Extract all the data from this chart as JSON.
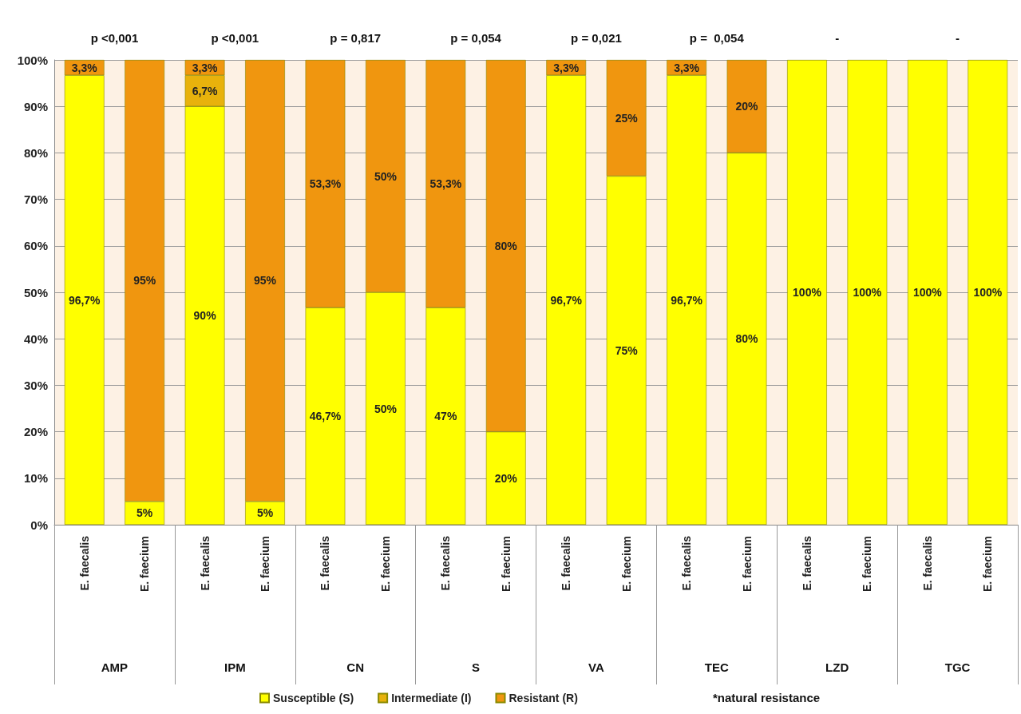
{
  "chart_data": {
    "type": "bar",
    "stacked": true,
    "categories": [
      "E. faecalis",
      "E. faecium",
      "E. faecalis",
      "E. faecium",
      "E. faecalis",
      "E. faecium",
      "E. faecalis",
      "E. faecium",
      "E. faecalis",
      "E. faecium",
      "E. faecalis",
      "E. faecium",
      "E. faecalis",
      "E. faecium",
      "E. faecalis",
      "E. faecium"
    ],
    "series": [
      {
        "name": "Susceptible (S)",
        "color": "#ffff00",
        "values": [
          96.7,
          5,
          90,
          5,
          46.7,
          50,
          46.7,
          20,
          96.7,
          75,
          96.7,
          80,
          100,
          100,
          100,
          100
        ],
        "value_labels": [
          "96,7%",
          "5%",
          "90%",
          "5%",
          "46,7%",
          "50%",
          "47%",
          "20%",
          "96,7%",
          "75%",
          "96,7%",
          "80%",
          "100%",
          "100%",
          "100%",
          "100%"
        ]
      },
      {
        "name": "Intermediate (I)",
        "color": "#e8b20c",
        "values": [
          0,
          0,
          6.7,
          0,
          0,
          0,
          0,
          0,
          0,
          0,
          0,
          0,
          0,
          0,
          0,
          0
        ],
        "value_labels": [
          null,
          null,
          "6,7%",
          null,
          null,
          null,
          null,
          null,
          null,
          null,
          null,
          null,
          null,
          null,
          null,
          null
        ]
      },
      {
        "name": "Resistant (R)",
        "color": "#f0960f",
        "values": [
          3.3,
          95,
          3.3,
          95,
          53.3,
          50,
          53.3,
          80,
          3.3,
          25,
          3.3,
          20,
          0,
          0,
          0,
          0
        ],
        "value_labels": [
          "3,3%",
          "95%",
          "3,3%",
          "95%",
          "53,3%",
          "50%",
          "53,3%",
          "80%",
          "3,3%",
          "25%",
          "3,3%",
          "20%",
          null,
          null,
          null,
          null
        ]
      }
    ],
    "ylim": [
      0,
      100
    ],
    "yticks": [
      {
        "value": 0,
        "label": "0%"
      },
      {
        "value": 10,
        "label": "10%"
      },
      {
        "value": 20,
        "label": "20%"
      },
      {
        "value": 30,
        "label": "30%"
      },
      {
        "value": 40,
        "label": "40%"
      },
      {
        "value": 50,
        "label": "50%"
      },
      {
        "value": 60,
        "label": "60%"
      },
      {
        "value": 70,
        "label": "70%"
      },
      {
        "value": 80,
        "label": "80%"
      },
      {
        "value": 90,
        "label": "90%"
      },
      {
        "value": 100,
        "label": "100%"
      }
    ],
    "grid": "y",
    "legend": "bottom",
    "annotations": [
      "p <0,001",
      "p <0,001",
      "p = 0,817",
      "p = 0,054",
      "p = 0,021",
      "p =  0,054",
      "-",
      "-",
      "AMP",
      "IPM",
      "CN",
      "S",
      "VA",
      "TEC",
      "LZD",
      "TGC",
      "*natural resistance"
    ]
  }
}
